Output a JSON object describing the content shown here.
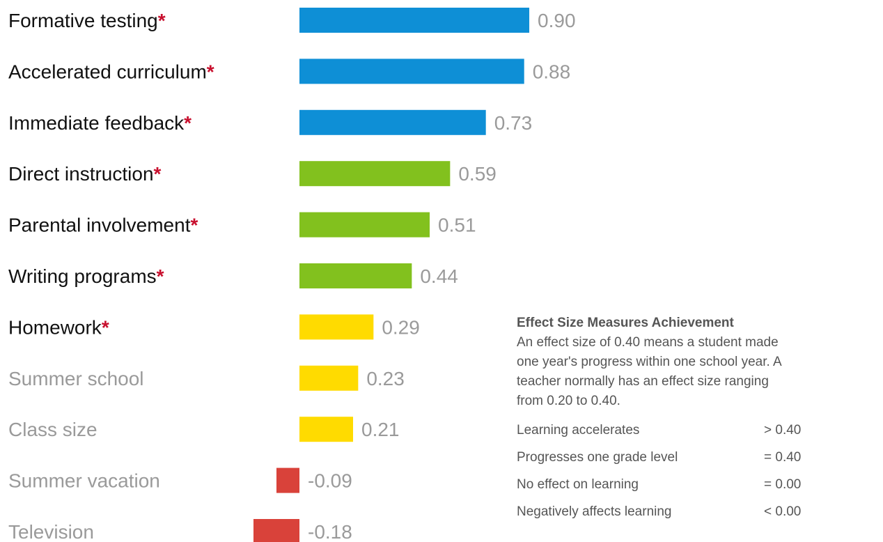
{
  "chart_data": {
    "type": "bar",
    "orientation": "horizontal",
    "categories": [
      "Formative testing",
      "Accelerated curriculum",
      "Immediate feedback",
      "Direct instruction",
      "Parental involvement",
      "Writing programs",
      "Homework",
      "Summer school",
      "Class size",
      "Summer vacation",
      "Television"
    ],
    "values": [
      0.9,
      0.88,
      0.73,
      0.59,
      0.51,
      0.44,
      0.29,
      0.23,
      0.21,
      -0.09,
      -0.18
    ],
    "value_labels": [
      "0.90",
      "0.88",
      "0.73",
      "0.59",
      "0.51",
      "0.44",
      "0.29",
      "0.23",
      "0.21",
      "-0.09",
      "-0.18"
    ],
    "significant": [
      true,
      true,
      true,
      true,
      true,
      true,
      true,
      false,
      false,
      false,
      false
    ],
    "significance_marker": "*",
    "bar_colors": [
      "#0e8fd6",
      "#0e8fd6",
      "#0e8fd6",
      "#82c11e",
      "#82c11e",
      "#82c11e",
      "#ffdb00",
      "#ffdb00",
      "#ffdb00",
      "#d9423a",
      "#d9423a"
    ],
    "colors": {
      "blue": "#0e8fd6",
      "green": "#82c11e",
      "yellow": "#ffdb00",
      "red": "#d9423a",
      "asterisk": "#c8102e",
      "label_dark": "#111111",
      "label_muted": "#9a9a9a"
    },
    "title": "",
    "xlabel": "",
    "ylabel": "",
    "grid": false,
    "xlim": [
      -0.2,
      0.9
    ]
  },
  "legend": {
    "title": "Effect Size Measures Achievement",
    "description_lines": [
      "An effect size of 0.40 means a student made",
      "one year's progress within one school year. A",
      "teacher normally has an effect size ranging",
      "from 0.20 to 0.40."
    ],
    "rows": [
      {
        "label": "Learning accelerates",
        "value": "> 0.40"
      },
      {
        "label": "Progresses one grade level",
        "value": "= 0.40"
      },
      {
        "label": "No effect on learning",
        "value": "= 0.00"
      },
      {
        "label": "Negatively affects learning",
        "value": "< 0.00"
      }
    ]
  }
}
